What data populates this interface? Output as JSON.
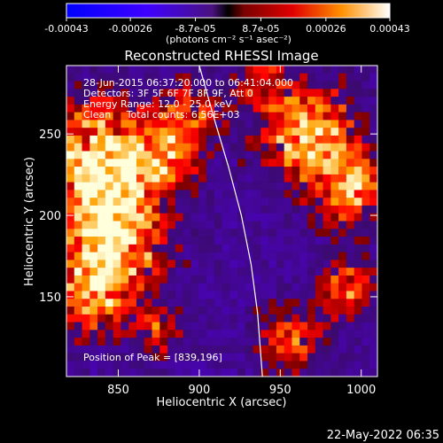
{
  "colorbar": {
    "tick_labels": [
      "-0.00043",
      "-0.00026",
      "-8.7e-05",
      "8.7e-05",
      "0.00026",
      "0.00043"
    ],
    "units": "(photons cm⁻² s⁻¹ asec⁻²)",
    "range": [
      -0.00043,
      0.00043
    ]
  },
  "chart_data": {
    "type": "heatmap",
    "title": "Reconstructed RHESSI Image",
    "xlabel": "Heliocentric X (arcsec)",
    "ylabel": "Heliocentric Y (arcsec)",
    "xlim": [
      818,
      1010
    ],
    "ylim": [
      101,
      292
    ],
    "x_ticks": [
      850,
      900,
      950,
      1000
    ],
    "y_ticks": [
      150,
      200,
      250
    ],
    "x_tick_labels": [
      "850",
      "900",
      "950",
      "1000"
    ],
    "y_tick_labels": [
      "150",
      "200",
      "250"
    ],
    "annotations": [
      "28-Jun-2015 06:37:20.000 to 06:41:04.000",
      "Detectors: 3F 5F 6F 7F 8F 9F, Att 0",
      "Energy Range: 12.0 - 25.0 keV",
      "Clean     Total counts: 6.56E+03"
    ],
    "peak_label": "Position of Peak = [839,196]",
    "peak": [
      839,
      196
    ],
    "limb": [
      [
        900,
        292
      ],
      [
        909,
        260
      ],
      [
        918,
        230
      ],
      [
        926,
        200
      ],
      [
        932,
        170
      ],
      [
        936,
        140
      ],
      [
        939,
        101
      ]
    ]
  },
  "footer": {
    "timestamp": "22-May-2022 06:35"
  },
  "colors": {
    "background": "#000000",
    "limb": "#ffffff",
    "text": "#ffffff"
  }
}
